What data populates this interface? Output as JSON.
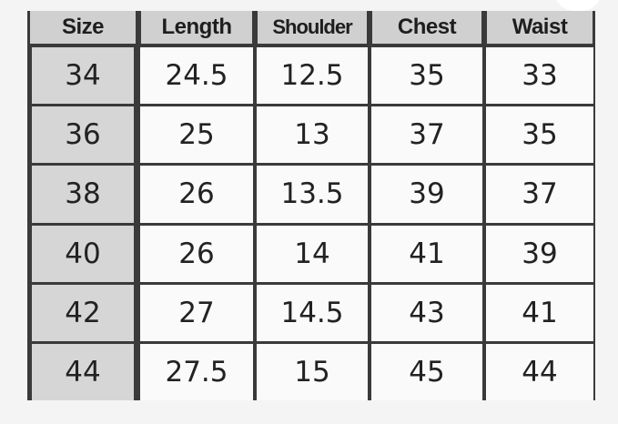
{
  "table": {
    "headers": [
      "Size",
      "Length",
      "Shoulder",
      "Chest",
      "Waist"
    ],
    "rows": [
      [
        "34",
        "24.5",
        "12.5",
        "35",
        "33"
      ],
      [
        "36",
        "25",
        "13",
        "37",
        "35"
      ],
      [
        "38",
        "26",
        "13.5",
        "39",
        "37"
      ],
      [
        "40",
        "26",
        "14",
        "41",
        "39"
      ],
      [
        "42",
        "27",
        "14.5",
        "43",
        "41"
      ],
      [
        "44",
        "27.5",
        "15",
        "45",
        "44"
      ]
    ]
  }
}
